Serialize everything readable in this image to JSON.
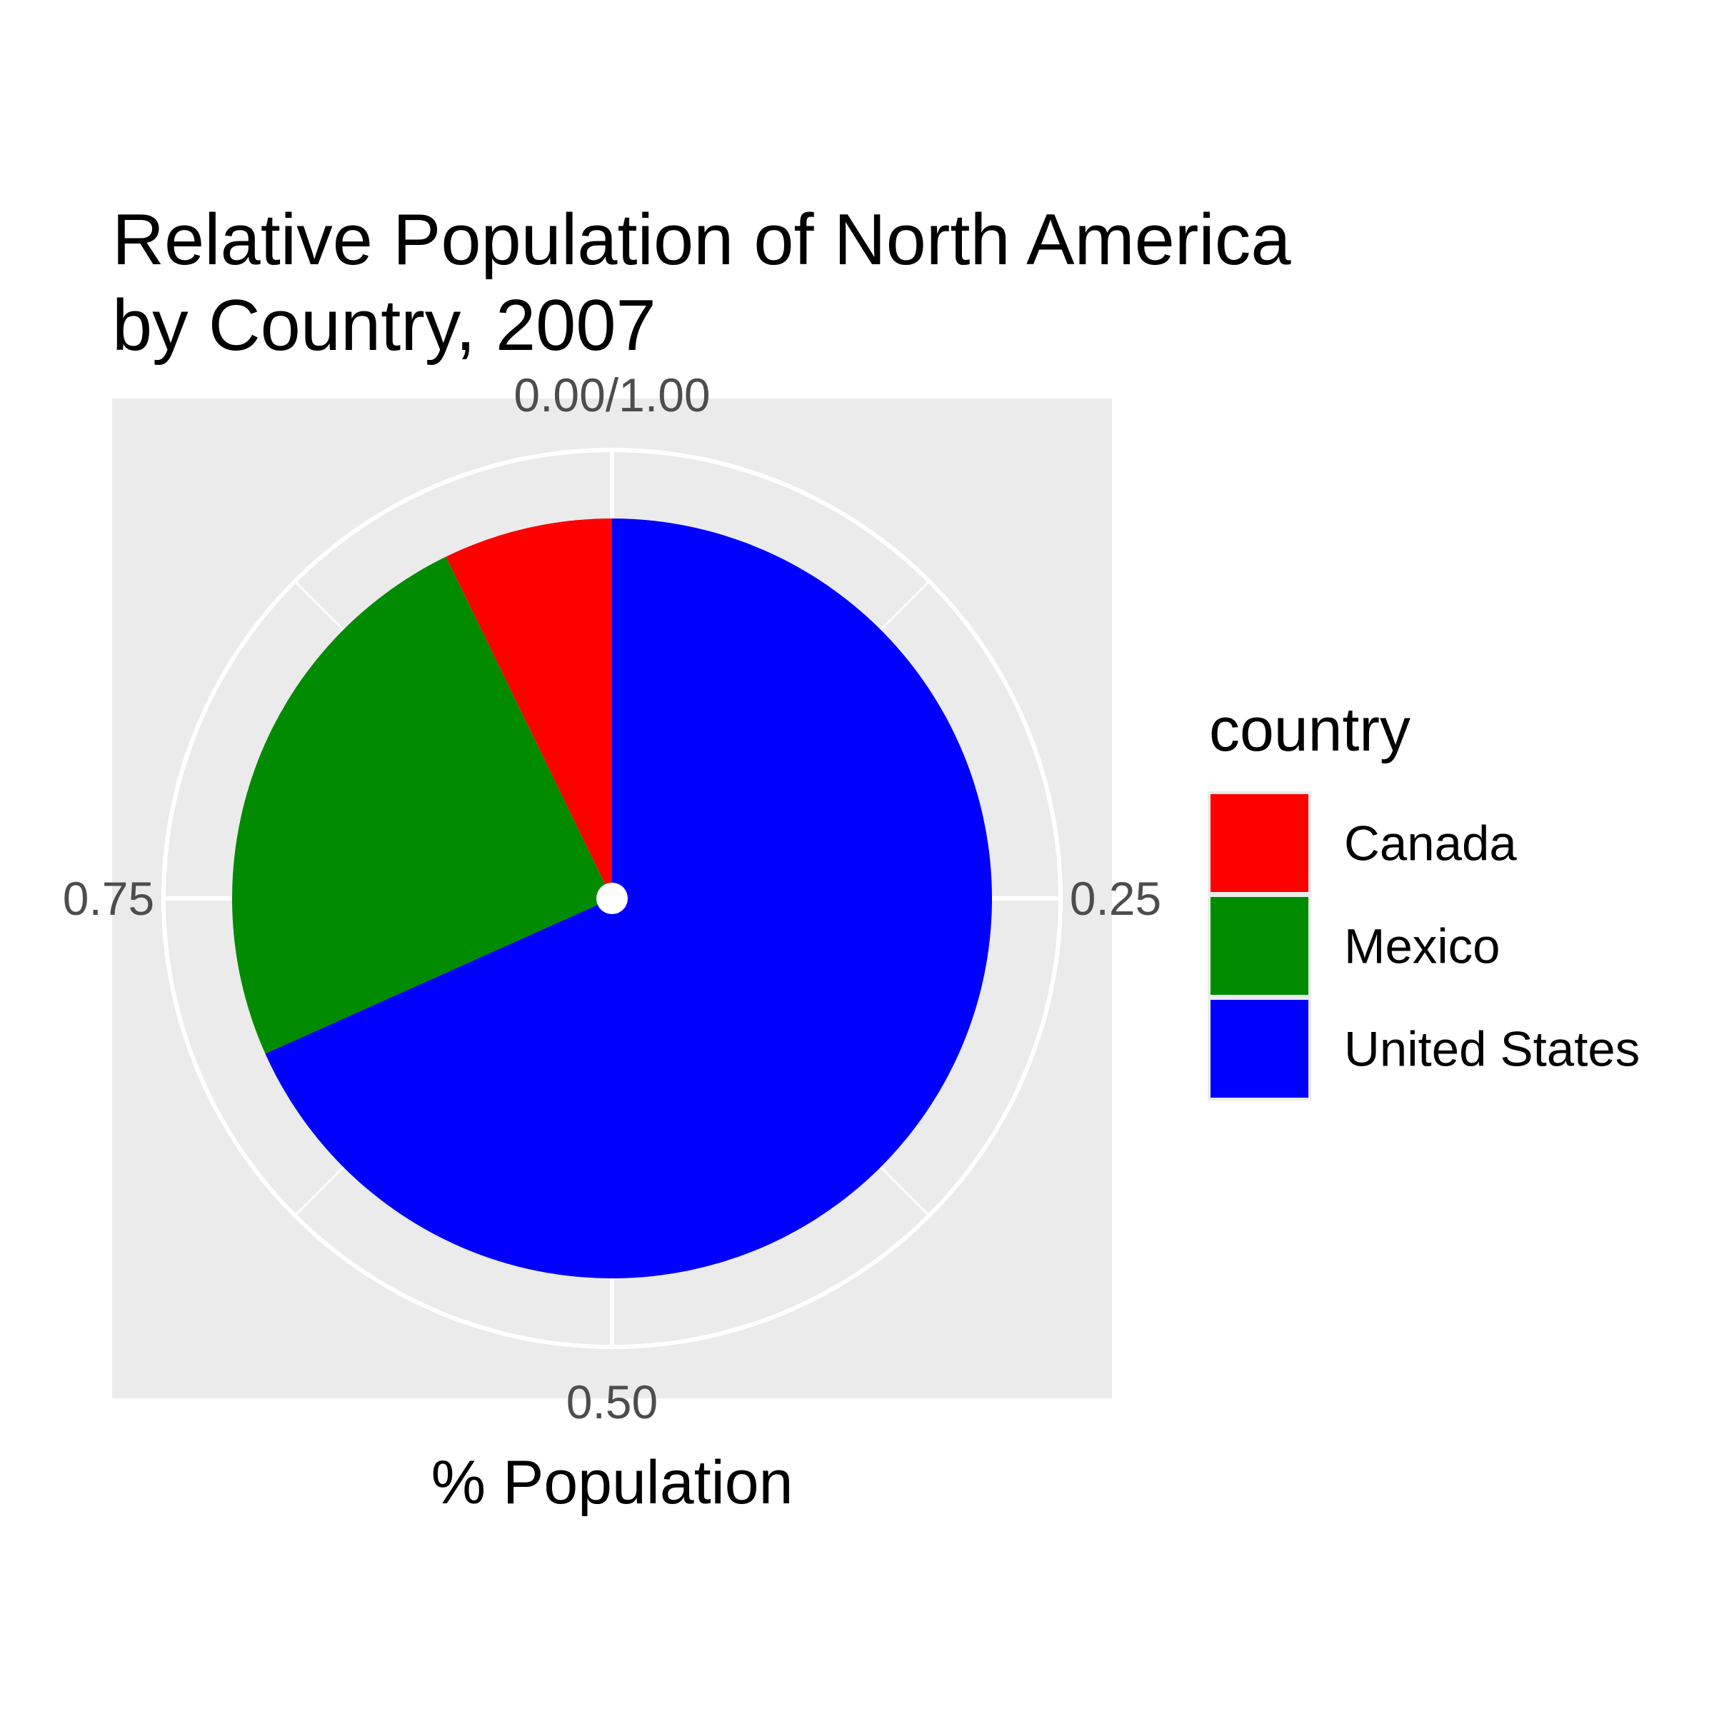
{
  "chart_data": {
    "type": "pie",
    "title": "Relative Population of North America\nby Country, 2007",
    "title_lines": [
      "Relative Population of North America",
      "by Country, 2007"
    ],
    "xlabel": "% Population",
    "ylabel": "",
    "angle_ticks": [
      {
        "value": 0.0,
        "label": "0.00/1.00"
      },
      {
        "value": 0.25,
        "label": "0.25"
      },
      {
        "value": 0.5,
        "label": "0.50"
      },
      {
        "value": 0.75,
        "label": "0.75"
      }
    ],
    "slices": [
      {
        "label": "United States",
        "value": 0.683,
        "color": "#0000FF"
      },
      {
        "label": "Mexico",
        "value": 0.245,
        "color": "#008B00"
      },
      {
        "label": "Canada",
        "value": 0.072,
        "color": "#FF0000"
      }
    ],
    "legend": {
      "title": "country",
      "position": "right",
      "items": [
        {
          "label": "Canada",
          "color": "#FF0000"
        },
        {
          "label": "Mexico",
          "color": "#008B00"
        },
        {
          "label": "United States",
          "color": "#0000FF"
        }
      ]
    },
    "panel_background": "#EBEBEB",
    "grid": true,
    "grid_color": "#FFFFFF"
  }
}
